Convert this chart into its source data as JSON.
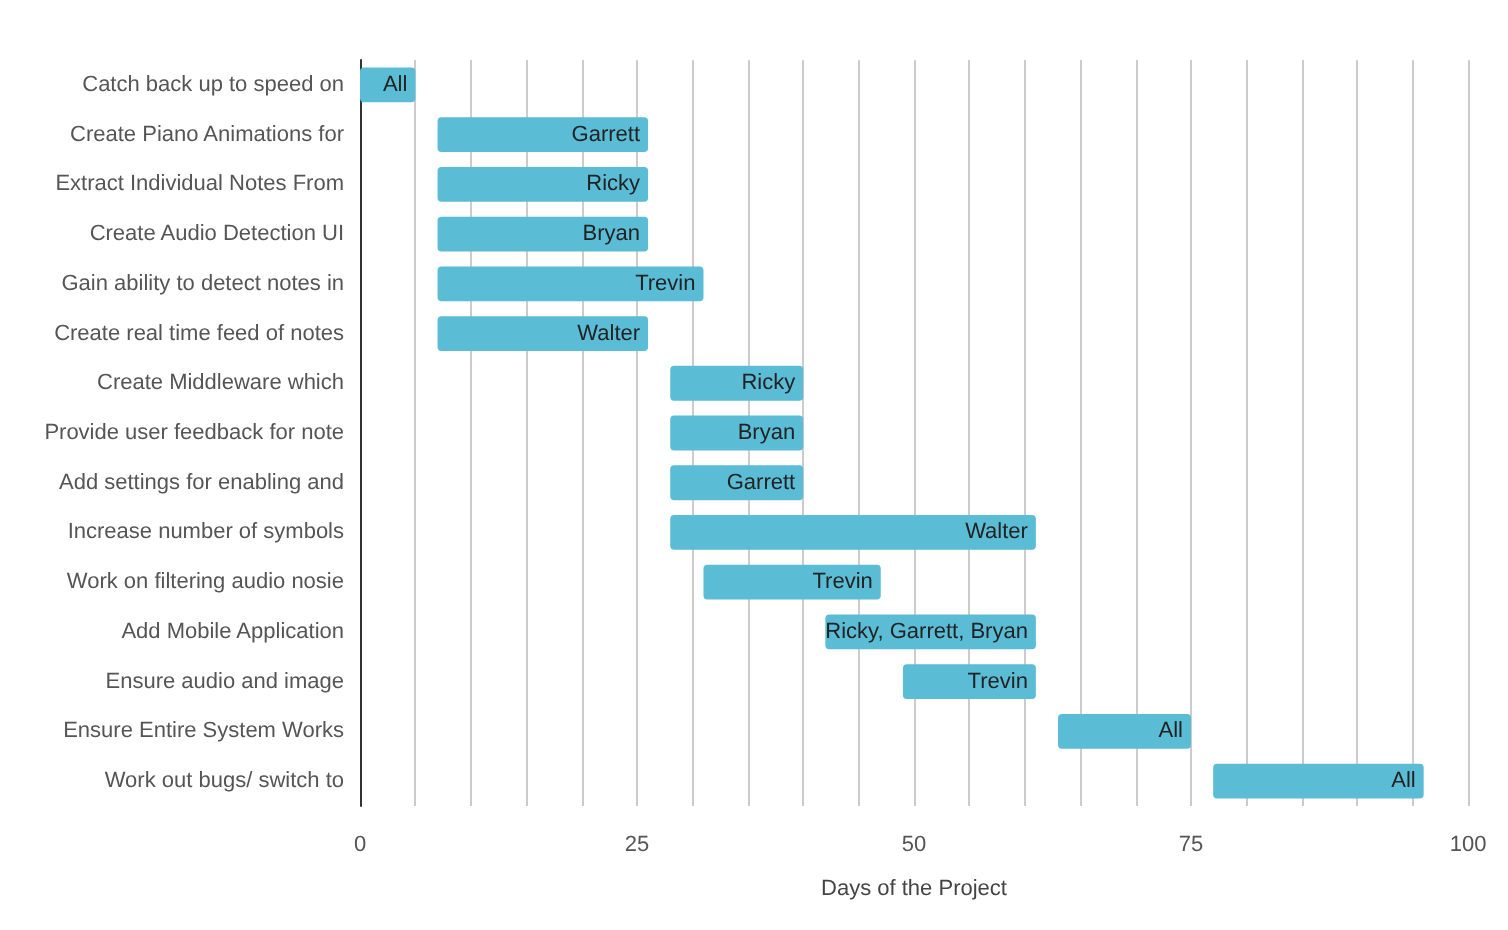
{
  "chart_data": {
    "type": "bar",
    "orientation": "horizontal",
    "xlabel": "Days of the Project",
    "categories": [
      "Catch back up to speed on",
      "Create Piano Animations for",
      "Extract Individual Notes From",
      "Create Audio Detection UI",
      "Gain ability to detect notes in",
      "Create real time feed of notes",
      "Create Middleware which",
      "Provide user feedback for note",
      "Add settings for enabling and",
      "Increase number of symbols",
      "Work on filtering audio nosie",
      "Add Mobile Application",
      "Ensure audio and image",
      "Ensure Entire System Works",
      "Work out bugs/ switch to"
    ],
    "base": [
      0,
      7,
      7,
      7,
      7,
      7,
      28,
      28,
      28,
      28,
      31,
      42,
      49,
      63,
      77
    ],
    "values": [
      5,
      19,
      19,
      19,
      24,
      19,
      12,
      12,
      12,
      33,
      16,
      19,
      12,
      12,
      19
    ],
    "value_labels": [
      "All",
      "Garrett",
      "Ricky",
      "Bryan",
      "Trevin",
      "Walter",
      "Ricky",
      "Bryan",
      "Garrett",
      "Walter",
      "Trevin",
      "Ricky, Garrett, Bryan",
      "Trevin",
      "All",
      "All"
    ],
    "color": "#5bbcd6",
    "xlim": [
      0,
      100
    ],
    "xticks": [
      0,
      {
        "value": 5,
        "label": null
      },
      {
        "value": 10,
        "label": null
      },
      {
        "value": 15,
        "label": null
      },
      {
        "value": 20,
        "label": null
      },
      25,
      {
        "value": 30,
        "label": null
      },
      {
        "value": 35,
        "label": null
      },
      {
        "value": 40,
        "label": null
      },
      {
        "value": 45,
        "label": null
      },
      50,
      {
        "value": 55,
        "label": null
      },
      {
        "value": 60,
        "label": null
      },
      {
        "value": 65,
        "label": null
      },
      {
        "value": 70,
        "label": null
      },
      75,
      {
        "value": 80,
        "label": null
      },
      {
        "value": 85,
        "label": null
      },
      {
        "value": 90,
        "label": null
      },
      {
        "value": 95,
        "label": null
      },
      100
    ],
    "grid": "x"
  }
}
